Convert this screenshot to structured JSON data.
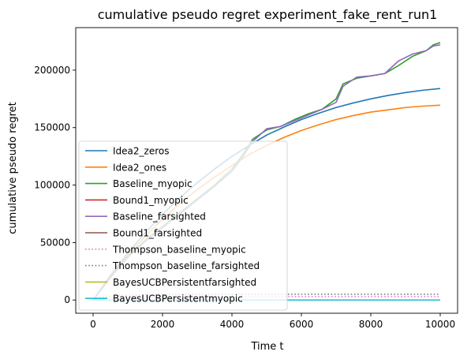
{
  "chart_data": {
    "type": "line",
    "title": "cumulative pseudo regret experiment_fake_rent_run1",
    "xlabel": "Time t",
    "ylabel": "cumulative pseudo regret",
    "xlim": [
      -500,
      10500
    ],
    "ylim": [
      -11500,
      237000
    ],
    "xticks": [
      0,
      2000,
      4000,
      6000,
      8000,
      10000
    ],
    "yticks": [
      0,
      50000,
      100000,
      150000,
      200000
    ],
    "grid": false,
    "legend_position": "lower-left",
    "series": [
      {
        "name": "Idea2_zeros",
        "color": "#1f77b4",
        "dash": "solid",
        "points": [
          [
            0,
            0
          ],
          [
            500,
            21500
          ],
          [
            1000,
            41000
          ],
          [
            1500,
            58500
          ],
          [
            2000,
            74500
          ],
          [
            2500,
            89000
          ],
          [
            3000,
            102000
          ],
          [
            3500,
            114000
          ],
          [
            4000,
            125000
          ],
          [
            4500,
            134500
          ],
          [
            5000,
            143500
          ],
          [
            5500,
            150500
          ],
          [
            6000,
            157000
          ],
          [
            6500,
            162500
          ],
          [
            7000,
            167500
          ],
          [
            7500,
            171500
          ],
          [
            8000,
            175000
          ],
          [
            8500,
            178000
          ],
          [
            9000,
            180500
          ],
          [
            9500,
            182500
          ],
          [
            10000,
            184000
          ]
        ]
      },
      {
        "name": "Idea2_ones",
        "color": "#ff7f0e",
        "dash": "solid",
        "points": [
          [
            0,
            0
          ],
          [
            500,
            20500
          ],
          [
            1000,
            39000
          ],
          [
            1500,
            55500
          ],
          [
            2000,
            70500
          ],
          [
            2500,
            84000
          ],
          [
            3000,
            96000
          ],
          [
            3500,
            107000
          ],
          [
            4000,
            117000
          ],
          [
            4500,
            126500
          ],
          [
            5000,
            134500
          ],
          [
            5500,
            141500
          ],
          [
            6000,
            147500
          ],
          [
            6500,
            152500
          ],
          [
            7000,
            157000
          ],
          [
            7500,
            160500
          ],
          [
            8000,
            163500
          ],
          [
            8500,
            165500
          ],
          [
            9000,
            167500
          ],
          [
            9500,
            168700
          ],
          [
            10000,
            169500
          ]
        ]
      },
      {
        "name": "Baseline_myopic",
        "color": "#2ca02c",
        "dash": "solid",
        "points": [
          [
            0,
            0
          ],
          [
            300,
            12000
          ],
          [
            600,
            24000
          ],
          [
            1000,
            38000
          ],
          [
            1500,
            52000
          ],
          [
            2000,
            64000
          ],
          [
            2500,
            76000
          ],
          [
            3000,
            88000
          ],
          [
            3500,
            100000
          ],
          [
            4000,
            114000
          ],
          [
            4300,
            126000
          ],
          [
            4600,
            140000
          ],
          [
            5000,
            148000
          ],
          [
            5400,
            151000
          ],
          [
            5800,
            157000
          ],
          [
            6200,
            162000
          ],
          [
            6600,
            166000
          ],
          [
            7000,
            175000
          ],
          [
            7200,
            188000
          ],
          [
            7600,
            193000
          ],
          [
            8000,
            195000
          ],
          [
            8400,
            197000
          ],
          [
            8800,
            204000
          ],
          [
            9200,
            212000
          ],
          [
            9600,
            217000
          ],
          [
            9800,
            222000
          ],
          [
            10000,
            224000
          ]
        ]
      },
      {
        "name": "Bound1_myopic",
        "color": "#d62728",
        "dash": "solid",
        "points": [
          [
            0,
            0
          ],
          [
            10000,
            0
          ]
        ]
      },
      {
        "name": "Baseline_farsighted",
        "color": "#9467bd",
        "dash": "solid",
        "points": [
          [
            0,
            0
          ],
          [
            300,
            11500
          ],
          [
            600,
            23000
          ],
          [
            1000,
            37000
          ],
          [
            1500,
            51000
          ],
          [
            2000,
            63000
          ],
          [
            2500,
            75000
          ],
          [
            3000,
            87000
          ],
          [
            3500,
            99000
          ],
          [
            4000,
            112000
          ],
          [
            4300,
            124000
          ],
          [
            4600,
            138000
          ],
          [
            5000,
            149000
          ],
          [
            5400,
            151000
          ],
          [
            5800,
            156000
          ],
          [
            6200,
            161000
          ],
          [
            6600,
            166000
          ],
          [
            7000,
            172000
          ],
          [
            7200,
            186000
          ],
          [
            7600,
            194000
          ],
          [
            8000,
            195000
          ],
          [
            8400,
            197000
          ],
          [
            8800,
            208000
          ],
          [
            9200,
            214000
          ],
          [
            9600,
            217000
          ],
          [
            9800,
            221000
          ],
          [
            10000,
            222000
          ]
        ]
      },
      {
        "name": "Bound1_farsighted",
        "color": "#8c564b",
        "dash": "solid",
        "points": [
          [
            0,
            0
          ],
          [
            10000,
            0
          ]
        ]
      },
      {
        "name": "Thompson_baseline_myopic",
        "color": "#e377c2",
        "dash": "dotted",
        "points": [
          [
            0,
            0
          ],
          [
            200,
            1500
          ],
          [
            600,
            2500
          ],
          [
            2000,
            3000
          ],
          [
            10000,
            3000
          ]
        ]
      },
      {
        "name": "Thompson_baseline_farsighted",
        "color": "#7f7f7f",
        "dash": "dotted",
        "points": [
          [
            0,
            0
          ],
          [
            200,
            2500
          ],
          [
            600,
            4000
          ],
          [
            2000,
            5000
          ],
          [
            10000,
            5000
          ]
        ]
      },
      {
        "name": "BayesUCBPersistentfarsighted",
        "color": "#bcbd22",
        "dash": "solid",
        "points": [
          [
            0,
            0
          ],
          [
            10000,
            0
          ]
        ]
      },
      {
        "name": "BayesUCBPersistentmyopic",
        "color": "#17becf",
        "dash": "solid",
        "points": [
          [
            0,
            0
          ],
          [
            10000,
            0
          ]
        ]
      }
    ]
  }
}
